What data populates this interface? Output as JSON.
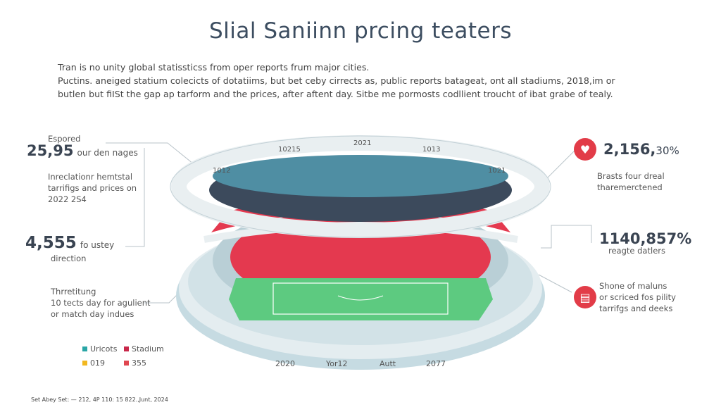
{
  "title": "Slial Saniinn prcing teaters",
  "intro": [
    "Tran is no unity global statissticss from oper reports frum major cities.",
    "Puctins. aneiged statium colecicts of dotatiims, but bet ceby cirrects as, public reports batageat, ont all stadiums, 2018,im or",
    "butlen but fiISt the gap ap tarform and the prices, after aftent day. Sitbe me pormosts codllient troucht of ibat grabe of tealy."
  ],
  "left": {
    "stat1": {
      "label": "Espored",
      "value": "25,95",
      "unit": "our den nages"
    },
    "desc1": [
      "Inreclationr hemtstal",
      "tarrifigs and prices on",
      "2022 2S4"
    ],
    "stat2": {
      "value": "4,555",
      "unit": "fo ustey",
      "sub": "direction"
    },
    "stat3": {
      "label": "Thrretitung",
      "lines": [
        "10 tects day for agulient",
        "or match day indues"
      ]
    }
  },
  "right": {
    "stat1": {
      "icon": "heart-icon",
      "value": "2,156,",
      "suffix": "30%",
      "lines": [
        "Brasts four dreal",
        "tharemerctened"
      ]
    },
    "stat2": {
      "value": "1140,857%",
      "sub": "reagte datlers"
    },
    "stat3": {
      "icon": "ticket-icon",
      "lines": [
        "Shone of maluns",
        "or scriced fos pility",
        "tarrifgs and deeks"
      ]
    }
  },
  "arc_labels": [
    "1012",
    "10215",
    "2021",
    "1013",
    "1021"
  ],
  "legend": [
    {
      "label": "Uricots",
      "color": "#2aa6a6"
    },
    {
      "label": "Stadium",
      "color": "#c8284a"
    },
    {
      "label": "019",
      "color": "#f2b820"
    },
    {
      "label": "355",
      "color": "#e04650"
    }
  ],
  "years": [
    "2020",
    "Yor12",
    "Autt",
    "2077"
  ],
  "footer": "Set Abey Set: — 212, 4P 110: 15 822.,Junt, 2024",
  "colors": {
    "accent": "#e23c48",
    "field": "#5dca80",
    "roof": "#e9eff1",
    "text": "#3c4d60"
  }
}
